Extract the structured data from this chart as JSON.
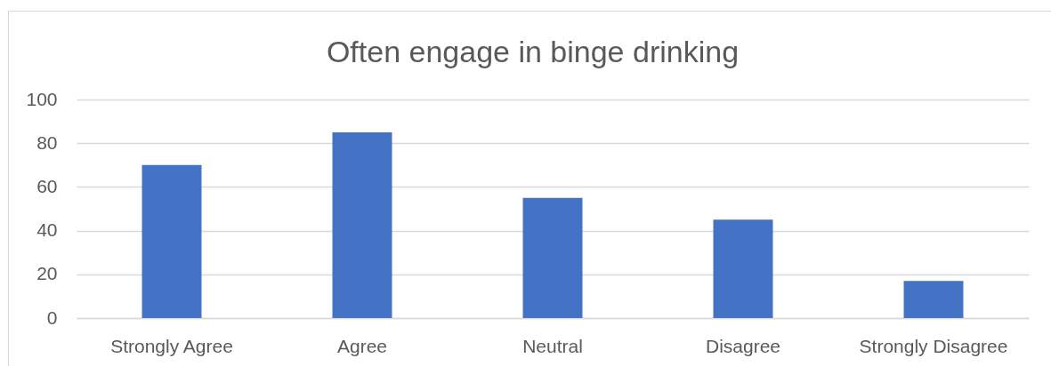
{
  "chart_data": {
    "type": "bar",
    "title": "Often engage in binge drinking",
    "categories": [
      "Strongly Agree",
      "Agree",
      "Neutral",
      "Disagree",
      "Strongly Disagree"
    ],
    "values": [
      70,
      85,
      55,
      45,
      17
    ],
    "color": "#4472c4",
    "ylim": [
      0,
      100
    ],
    "yticks": [
      0,
      20,
      40,
      60,
      80,
      100
    ],
    "grid": "y"
  }
}
